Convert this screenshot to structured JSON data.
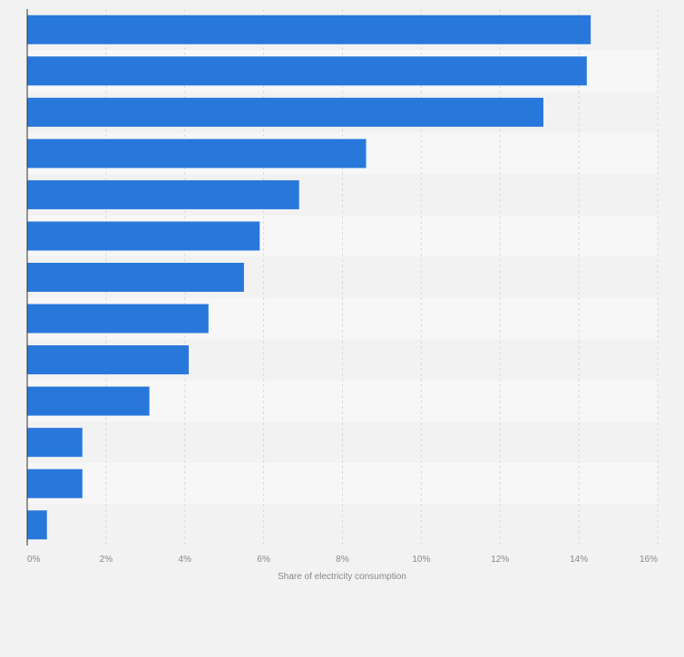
{
  "chart_data": {
    "type": "bar",
    "orientation": "horizontal",
    "title": "",
    "xlabel": "Share of electricity consumption",
    "ylabel": "",
    "xlim": [
      0,
      16
    ],
    "x_ticks": [
      0,
      2,
      4,
      6,
      8,
      10,
      12,
      14,
      16
    ],
    "x_tick_labels": [
      "0%",
      "2%",
      "4%",
      "6%",
      "8%",
      "10%",
      "12%",
      "14%",
      "16%"
    ],
    "grid": true,
    "categories": [
      "",
      "",
      "",
      "",
      "",
      "",
      "",
      "",
      "",
      "",
      "",
      "",
      ""
    ],
    "values": [
      14.3,
      14.2,
      13.1,
      8.6,
      6.9,
      5.9,
      5.5,
      4.6,
      4.1,
      3.1,
      1.4,
      1.4,
      0.5
    ],
    "colors": {
      "bar": "#2878dc",
      "band_light": "#f7f7f7",
      "band_dark": "#f2f2f2",
      "grid": "#d9d9d9",
      "axis": "#333333",
      "text": "#888888"
    }
  }
}
